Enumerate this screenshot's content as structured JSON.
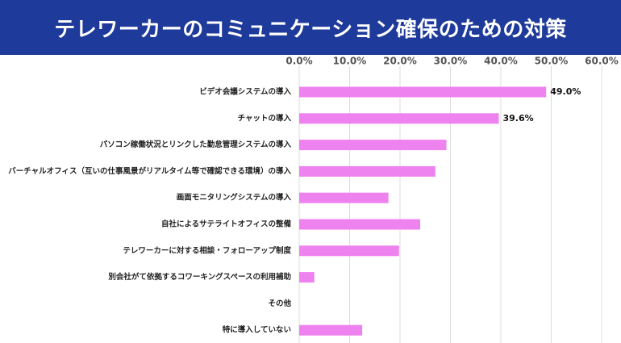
{
  "header": {
    "title": "テレワーカーのコミュニケーション確保のための対策",
    "background": "#1e3a9a"
  },
  "chart_data": {
    "type": "bar",
    "orientation": "horizontal",
    "title": "テレワーカーのコミュニケーション確保のための対策",
    "bar_color": "#ee82ee",
    "xlim": [
      0,
      60
    ],
    "x_ticks": [
      "0.0%",
      "10.0%",
      "20.0%",
      "30.0%",
      "40.0%",
      "50.0%",
      "60.0%"
    ],
    "x_tick_values": [
      0,
      10,
      20,
      30,
      40,
      50,
      60
    ],
    "categories": [
      "ビデオ会議システムの導入",
      "チャットの導入",
      "パソコン稼働状況とリンクした勤怠管理システムの導入",
      "バーチャルオフィス（互いの仕事風景がリアルタイム等で確認できる環境）の導入",
      "画面モニタリングシステムの導入",
      "自社によるサテライトオフィスの整備",
      "テレワーカーに対する相談・フォローアップ制度",
      "別会社がて依拠するコワーキングスペースの利用補助",
      "その他",
      "特に導入していない"
    ],
    "values": [
      49.0,
      39.6,
      29.2,
      27.0,
      17.7,
      24.0,
      19.8,
      3.0,
      0.0,
      12.5
    ],
    "data_labels": [
      "49.0%",
      "39.6%",
      "",
      "",
      "",
      "",
      "",
      "",
      "",
      ""
    ],
    "grid": true
  }
}
